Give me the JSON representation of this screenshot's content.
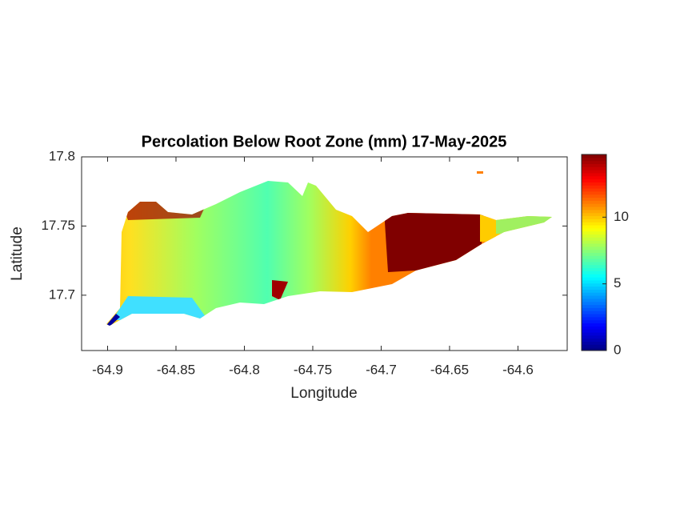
{
  "chart_data": {
    "type": "map",
    "title": "Percolation Below Root Zone (mm) 17-May-2025",
    "xlabel": "Longitude",
    "ylabel": "Latitude",
    "xlim": [
      -64.919,
      -64.564
    ],
    "xticks": [
      -64.9,
      -64.85,
      -64.8,
      -64.75,
      -64.7,
      -64.65,
      -64.6
    ],
    "ylim": [
      17.66,
      17.8
    ],
    "yticks": [
      17.7,
      17.75,
      17.8
    ],
    "colorbar": {
      "clim": [
        0,
        14.7
      ],
      "ticks": [
        0,
        5,
        10
      ],
      "colormap": "jet"
    }
  }
}
